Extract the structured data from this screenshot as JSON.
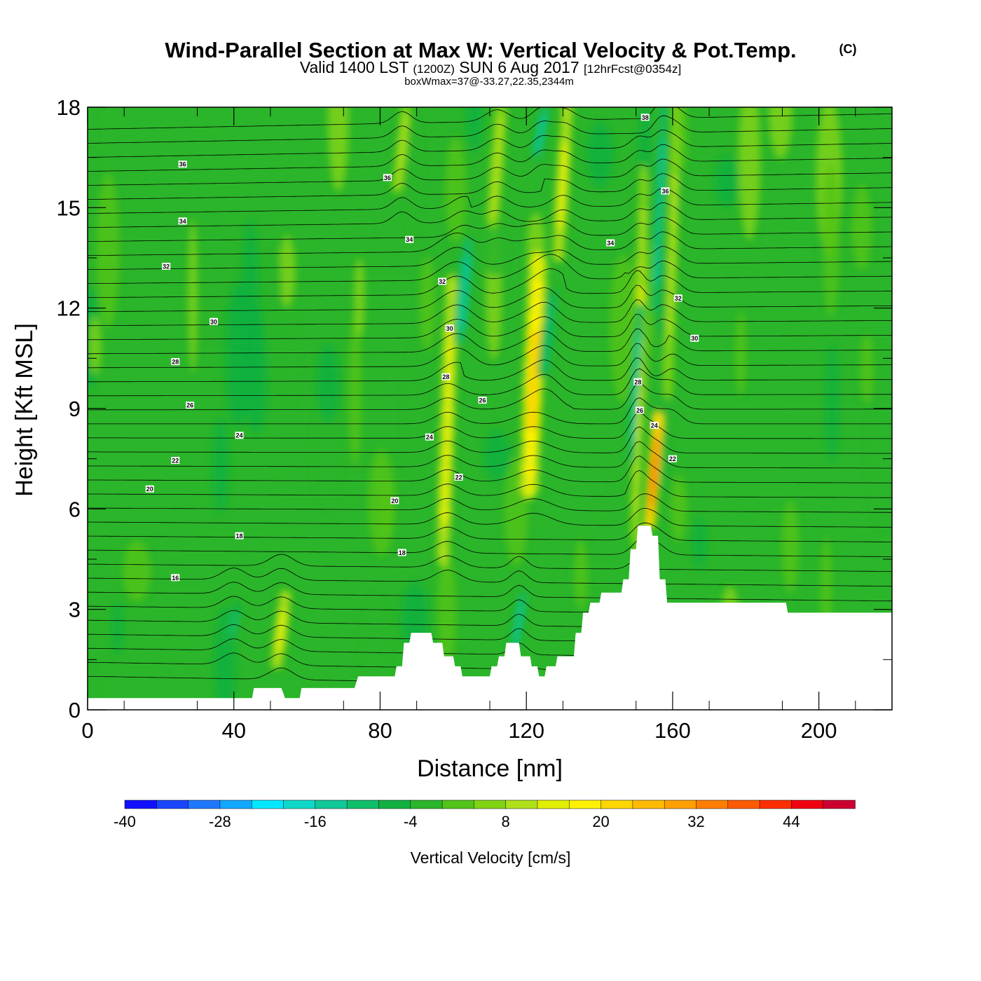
{
  "header": {
    "title": "Wind-Parallel Section at Max W: Vertical Velocity & Pot.Temp.",
    "copyright": "(C)",
    "subtitle_prefix": "Valid 1400 LST",
    "subtitle_utc": "(1200Z)",
    "subtitle_date": "SUN 6 Aug 2017",
    "subtitle_forecast": "[12hrFcst@0354z]",
    "box_info": "boxWmax=37@-33.27,22.35,2344m"
  },
  "colors": {
    "background": "#ffffff",
    "terrain": "#ffffff",
    "contour": "#000000",
    "palette": [
      "#1010ff",
      "#1a45ff",
      "#1e78ff",
      "#12a8ff",
      "#00e8ff",
      "#0fd8c8",
      "#10c898",
      "#10be6a",
      "#12b040",
      "#2bb52a",
      "#52c418",
      "#80d414",
      "#b0e01a",
      "#e2ee00",
      "#fff200",
      "#ffd600",
      "#ffba00",
      "#ffa000",
      "#ff7e00",
      "#ff5a00",
      "#ff2e00",
      "#f00010",
      "#cc0030"
    ]
  },
  "chart_data": {
    "type": "heatmap",
    "title": "Wind-Parallel Section at Max W: Vertical Velocity & Pot.Temp.",
    "xlabel": "Distance [nm]",
    "ylabel": "Height [Kft MSL]",
    "xlim": [
      0,
      220
    ],
    "ylim": [
      0,
      18
    ],
    "xticks": [
      0,
      40,
      80,
      120,
      160,
      200
    ],
    "yticks": [
      0,
      3,
      6,
      9,
      12,
      15,
      18
    ],
    "colorbar": {
      "label": "Vertical Velocity [cm/s]",
      "min": -40,
      "max": 52,
      "ticks": [
        -40,
        -28,
        -16,
        -4,
        8,
        20,
        32,
        44
      ]
    },
    "updraft_bands": [
      {
        "x": 98.5,
        "y_bottom": 4.5,
        "y_top": 12.8,
        "w_max": 16,
        "width_nm": 2.2
      },
      {
        "x": 112,
        "y_bottom": 14.5,
        "y_top": 18,
        "w_max": 12,
        "width_nm": 2.0
      },
      {
        "x": 122,
        "y_bottom": 6.5,
        "y_top": 13.5,
        "w_max": 23,
        "width_nm": 3.0
      },
      {
        "x": 130,
        "y_bottom": 13.5,
        "y_top": 18,
        "w_max": 14,
        "width_nm": 2.0
      },
      {
        "x": 151,
        "y_bottom": 5.2,
        "y_top": 16,
        "w_max": 13,
        "width_nm": 1.5
      },
      {
        "x": 155,
        "y_bottom": 5.5,
        "y_top": 8.8,
        "w_max": 37,
        "width_nm": 1.8
      },
      {
        "x": 160,
        "y_bottom": 9.5,
        "y_top": 18,
        "w_max": 10,
        "width_nm": 1.6
      },
      {
        "x": 53,
        "y_bottom": 1.3,
        "y_top": 3.5,
        "w_max": 14,
        "width_nm": 2.0
      },
      {
        "x": 86,
        "y_bottom": 15.5,
        "y_top": 18,
        "w_max": 12,
        "width_nm": 1.6
      }
    ],
    "downdraft_bands": [
      {
        "x": 103,
        "y_bottom": 11,
        "y_top": 14,
        "w_min": -16,
        "width_nm": 2.0
      },
      {
        "x": 118,
        "y_bottom": 1.8,
        "y_top": 3.5,
        "w_min": -16,
        "width_nm": 1.4
      },
      {
        "x": 126,
        "y_bottom": 10,
        "y_top": 12.5,
        "w_min": -12,
        "width_nm": 2.0
      },
      {
        "x": 124,
        "y_bottom": 16.5,
        "y_top": 18,
        "w_min": -16,
        "width_nm": 1.6
      },
      {
        "x": 150,
        "y_bottom": 7.5,
        "y_top": 12,
        "w_min": -16,
        "width_nm": 1.2
      },
      {
        "x": 156.5,
        "y_bottom": 12,
        "y_top": 18,
        "w_min": -16,
        "width_nm": 1.2
      },
      {
        "x": 40,
        "y_bottom": 2.0,
        "y_top": 3.2,
        "w_min": -10,
        "width_nm": 2.0
      }
    ],
    "potential_temperature_labels": [
      {
        "value": "38",
        "x": 152.5,
        "y": 17.7
      },
      {
        "value": "36",
        "x": 26,
        "y": 16.3
      },
      {
        "value": "36",
        "x": 82,
        "y": 15.9
      },
      {
        "value": "36",
        "x": 158,
        "y": 15.5
      },
      {
        "value": "34",
        "x": 26,
        "y": 14.6
      },
      {
        "value": "34",
        "x": 88,
        "y": 14.05
      },
      {
        "value": "34",
        "x": 143,
        "y": 13.95
      },
      {
        "value": "32",
        "x": 21.5,
        "y": 13.25
      },
      {
        "value": "32",
        "x": 97,
        "y": 12.8
      },
      {
        "value": "32",
        "x": 161.5,
        "y": 12.3
      },
      {
        "value": "30",
        "x": 34.5,
        "y": 11.6
      },
      {
        "value": "30",
        "x": 99,
        "y": 11.4
      },
      {
        "value": "30",
        "x": 166,
        "y": 11.1
      },
      {
        "value": "28",
        "x": 24,
        "y": 10.4
      },
      {
        "value": "28",
        "x": 98,
        "y": 9.95
      },
      {
        "value": "28",
        "x": 150.5,
        "y": 9.8
      },
      {
        "value": "26",
        "x": 28,
        "y": 9.1
      },
      {
        "value": "26",
        "x": 108,
        "y": 9.25
      },
      {
        "value": "26",
        "x": 151,
        "y": 8.95
      },
      {
        "value": "24",
        "x": 41.5,
        "y": 8.2
      },
      {
        "value": "24",
        "x": 93.5,
        "y": 8.15
      },
      {
        "value": "24",
        "x": 155,
        "y": 8.5
      },
      {
        "value": "22",
        "x": 24,
        "y": 7.45
      },
      {
        "value": "22",
        "x": 101.5,
        "y": 6.95
      },
      {
        "value": "22",
        "x": 160,
        "y": 7.5
      },
      {
        "value": "20",
        "x": 17,
        "y": 6.6
      },
      {
        "value": "20",
        "x": 84,
        "y": 6.25
      },
      {
        "value": "18",
        "x": 41.5,
        "y": 5.2
      },
      {
        "value": "18",
        "x": 86,
        "y": 4.7
      },
      {
        "value": "16",
        "x": 24,
        "y": 3.95
      }
    ],
    "terrain": [
      [
        0,
        0.35
      ],
      [
        8,
        0.35
      ],
      [
        45,
        0.35
      ],
      [
        45.5,
        0.65
      ],
      [
        53,
        0.65
      ],
      [
        54,
        0.35
      ],
      [
        58,
        0.35
      ],
      [
        58.5,
        0.65
      ],
      [
        73,
        0.65
      ],
      [
        74,
        1.0
      ],
      [
        84,
        1.0
      ],
      [
        84.5,
        1.3
      ],
      [
        86,
        1.3
      ],
      [
        86.5,
        2.0
      ],
      [
        88,
        2.0
      ],
      [
        88.5,
        2.3
      ],
      [
        94,
        2.3
      ],
      [
        94.5,
        2.0
      ],
      [
        97,
        2.0
      ],
      [
        97.5,
        1.6
      ],
      [
        100,
        1.6
      ],
      [
        100.5,
        1.3
      ],
      [
        102,
        1.3
      ],
      [
        102.5,
        1.0
      ],
      [
        110,
        1.0
      ],
      [
        110.5,
        1.3
      ],
      [
        112,
        1.3
      ],
      [
        112.5,
        1.6
      ],
      [
        114,
        1.6
      ],
      [
        114.5,
        2.0
      ],
      [
        118,
        2.0
      ],
      [
        118.5,
        1.6
      ],
      [
        121,
        1.6
      ],
      [
        121.5,
        1.3
      ],
      [
        123,
        1.3
      ],
      [
        123.5,
        1.0
      ],
      [
        125,
        1.0
      ],
      [
        125.5,
        1.3
      ],
      [
        128,
        1.3
      ],
      [
        128.5,
        1.6
      ],
      [
        133,
        1.6
      ],
      [
        133.5,
        2.3
      ],
      [
        135,
        2.3
      ],
      [
        135.5,
        2.9
      ],
      [
        137,
        2.9
      ],
      [
        137.5,
        3.2
      ],
      [
        140,
        3.2
      ],
      [
        140.5,
        3.5
      ],
      [
        146,
        3.5
      ],
      [
        146.5,
        3.9
      ],
      [
        148,
        3.9
      ],
      [
        148.5,
        4.8
      ],
      [
        150,
        4.8
      ],
      [
        150.5,
        5.5
      ],
      [
        154,
        5.5
      ],
      [
        154.5,
        5.2
      ],
      [
        156,
        5.2
      ],
      [
        156.5,
        3.9
      ],
      [
        158,
        3.9
      ],
      [
        158.5,
        3.2
      ],
      [
        191,
        3.2
      ],
      [
        191.5,
        2.9
      ],
      [
        220,
        2.9
      ]
    ]
  }
}
